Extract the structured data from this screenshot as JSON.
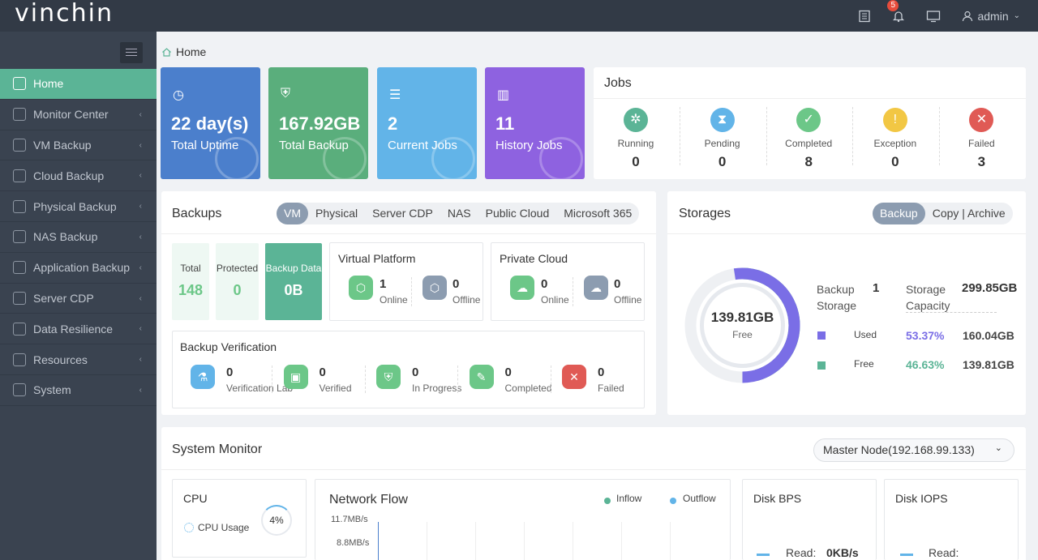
{
  "brand": {
    "logo": "vinchin"
  },
  "topbar": {
    "notifications_count": "5",
    "user": "admin"
  },
  "sidebar": {
    "items": [
      {
        "label": "Home",
        "icon": "home-icon"
      },
      {
        "label": "Monitor Center",
        "icon": "monitor-icon"
      },
      {
        "label": "VM Backup",
        "icon": "vm-icon"
      },
      {
        "label": "Cloud Backup",
        "icon": "cloud-icon"
      },
      {
        "label": "Physical Backup",
        "icon": "server-icon"
      },
      {
        "label": "NAS Backup",
        "icon": "nas-icon"
      },
      {
        "label": "Application Backup",
        "icon": "app-icon"
      },
      {
        "label": "Server CDP",
        "icon": "cdp-icon"
      },
      {
        "label": "Data Resilience",
        "icon": "resilience-icon"
      },
      {
        "label": "Resources",
        "icon": "resources-icon"
      },
      {
        "label": "System",
        "icon": "gear-icon"
      }
    ]
  },
  "breadcrumb": {
    "current": "Home"
  },
  "stats": [
    {
      "value": "22 day(s)",
      "label": "Total Uptime",
      "color": "#4b7fcc"
    },
    {
      "value": "167.92GB",
      "label": "Total Backup",
      "color": "#5aae7c"
    },
    {
      "value": "2",
      "label": "Current Jobs",
      "color": "#62b4e8"
    },
    {
      "value": "11",
      "label": "History Jobs",
      "color": "#8e62e0"
    }
  ],
  "jobs": {
    "title": "Jobs",
    "items": [
      {
        "label": "Running",
        "value": "0",
        "color": "#5bb496"
      },
      {
        "label": "Pending",
        "value": "0",
        "color": "#62b4e8"
      },
      {
        "label": "Completed",
        "value": "8",
        "color": "#6cc788"
      },
      {
        "label": "Exception",
        "value": "0",
        "color": "#f2c744"
      },
      {
        "label": "Failed",
        "value": "3",
        "color": "#e05a55"
      }
    ]
  },
  "backups": {
    "title": "Backups",
    "tabs": [
      "VM",
      "Physical",
      "Server CDP",
      "NAS",
      "Public Cloud",
      "Microsoft 365"
    ],
    "total_label": "Total",
    "total": "148",
    "protected_label": "Protected",
    "protected": "0",
    "data_label": "Backup Data",
    "data": "0B",
    "virtual_platform": {
      "title": "Virtual Platform",
      "online": "1",
      "online_label": "Online",
      "offline": "0",
      "offline_label": "Offline"
    },
    "private_cloud": {
      "title": "Private Cloud",
      "online": "0",
      "online_label": "Online",
      "offline": "0",
      "offline_label": "Offline"
    },
    "verification": {
      "title": "Backup Verification",
      "items": [
        {
          "value": "0",
          "label": "Verification Lab"
        },
        {
          "value": "0",
          "label": "Verified"
        },
        {
          "value": "0",
          "label": "In Progress"
        },
        {
          "value": "0",
          "label": "Completed"
        },
        {
          "value": "0",
          "label": "Failed"
        }
      ]
    }
  },
  "storages": {
    "title": "Storages",
    "tab_backup": "Backup",
    "tab_copy": "Copy | Archive",
    "center_value": "139.81GB",
    "center_label": "Free",
    "backup_storage_label": "Backup Storage",
    "backup_storage_value": "1",
    "capacity_label": "Storage Capacity",
    "capacity_value": "299.85GB",
    "used_label": "Used",
    "used_pct": "53.37%",
    "used_value": "160.04GB",
    "free_label": "Free",
    "free_pct": "46.63%",
    "free_value": "139.81GB",
    "used_fraction": 0.5337
  },
  "monitor": {
    "title": "System Monitor",
    "node": "Master Node(192.168.99.133)",
    "cpu_title": "CPU",
    "cpu_usage_label": "CPU Usage",
    "cpu_pct": "4%",
    "network_title": "Network Flow",
    "inflow": "Inflow",
    "outflow": "Outflow",
    "y1": "11.7MB/s",
    "y2": "8.8MB/s",
    "disk_bps_title": "Disk BPS",
    "disk_bps_read_label": "Read:",
    "disk_bps_read": "0KB/s",
    "disk_iops_title": "Disk IOPS",
    "disk_iops_read_label": "Read:"
  }
}
